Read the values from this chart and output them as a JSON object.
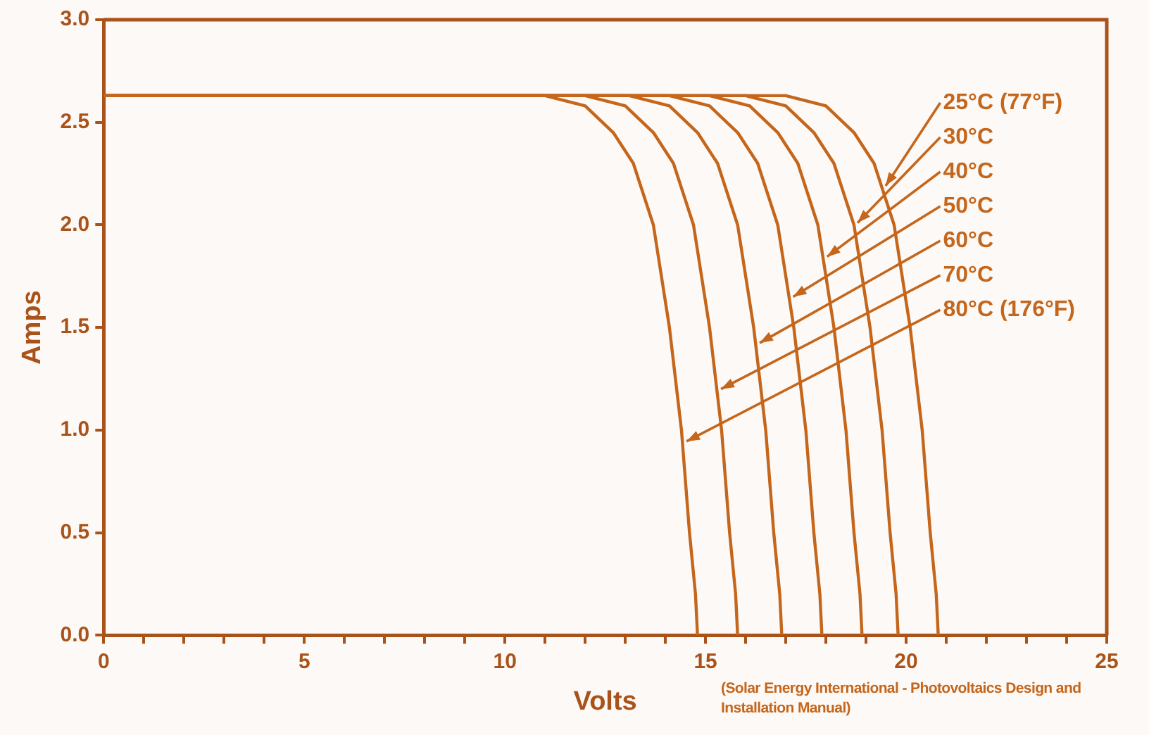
{
  "chart_data": {
    "type": "line",
    "xlabel": "Volts",
    "ylabel": "Amps",
    "xlim": [
      0,
      25
    ],
    "ylim": [
      0,
      3.0
    ],
    "xticks": [
      0,
      {
        "value": 1,
        "label": null
      },
      {
        "value": 2,
        "label": null
      },
      {
        "value": 3,
        "label": null
      },
      {
        "value": 4,
        "label": null
      },
      5,
      {
        "value": 6,
        "label": null
      },
      {
        "value": 7,
        "label": null
      },
      {
        "value": 8,
        "label": null
      },
      {
        "value": 9,
        "label": null
      },
      10,
      {
        "value": 11,
        "label": null
      },
      {
        "value": 12,
        "label": null
      },
      {
        "value": 13,
        "label": null
      },
      {
        "value": 14,
        "label": null
      },
      15,
      {
        "value": 16,
        "label": null
      },
      {
        "value": 17,
        "label": null
      },
      {
        "value": 18,
        "label": null
      },
      {
        "value": 19,
        "label": null
      },
      20,
      {
        "value": 21,
        "label": null
      },
      {
        "value": 22,
        "label": null
      },
      {
        "value": 23,
        "label": null
      },
      {
        "value": 24,
        "label": null
      },
      25
    ],
    "yticks": [
      {
        "value": 0,
        "label": "0.0"
      },
      0.5,
      {
        "value": 1,
        "label": "1.0"
      },
      1.5,
      {
        "value": 2,
        "label": "2.0"
      },
      2.5,
      {
        "value": 3,
        "label": "3.0"
      }
    ],
    "grid": false,
    "legend": "top right",
    "marker": "none",
    "line_style": "solid",
    "series": [
      {
        "name": "25°C (77°F)",
        "color": "#c4661c",
        "x": [
          0,
          17,
          18,
          18.7,
          19.2,
          19.7,
          20.1,
          20.4,
          20.6,
          20.75,
          20.8
        ],
        "values": [
          2.63,
          2.63,
          2.58,
          2.45,
          2.3,
          2.0,
          1.5,
          1.0,
          0.5,
          0.2,
          0
        ]
      },
      {
        "name": "30°C",
        "color": "#c4661c",
        "x": [
          0,
          16,
          17,
          17.7,
          18.2,
          18.7,
          19.1,
          19.4,
          19.6,
          19.75,
          19.8
        ],
        "values": [
          2.63,
          2.63,
          2.58,
          2.45,
          2.3,
          2.0,
          1.5,
          1.0,
          0.5,
          0.2,
          0
        ]
      },
      {
        "name": "40°C",
        "color": "#c4661c",
        "x": [
          0,
          15.1,
          16.1,
          16.8,
          17.3,
          17.8,
          18.2,
          18.5,
          18.7,
          18.85,
          18.9
        ],
        "values": [
          2.63,
          2.63,
          2.58,
          2.45,
          2.3,
          2.0,
          1.5,
          1.0,
          0.5,
          0.2,
          0
        ]
      },
      {
        "name": "50°C",
        "color": "#c4661c",
        "x": [
          0,
          14.1,
          15.1,
          15.8,
          16.3,
          16.8,
          17.2,
          17.5,
          17.7,
          17.85,
          17.9
        ],
        "values": [
          2.63,
          2.63,
          2.58,
          2.45,
          2.3,
          2.0,
          1.5,
          1.0,
          0.5,
          0.2,
          0
        ]
      },
      {
        "name": "60°C",
        "color": "#c4661c",
        "x": [
          0,
          13.1,
          14.1,
          14.8,
          15.3,
          15.8,
          16.2,
          16.5,
          16.7,
          16.85,
          16.9
        ],
        "values": [
          2.63,
          2.63,
          2.58,
          2.45,
          2.3,
          2.0,
          1.5,
          1.0,
          0.5,
          0.2,
          0
        ]
      },
      {
        "name": "70°C",
        "color": "#c4661c",
        "x": [
          0,
          12,
          13,
          13.7,
          14.2,
          14.7,
          15.1,
          15.4,
          15.6,
          15.75,
          15.8
        ],
        "values": [
          2.63,
          2.63,
          2.58,
          2.45,
          2.3,
          2.0,
          1.5,
          1.0,
          0.5,
          0.2,
          0
        ]
      },
      {
        "name": "80°C (176°F)",
        "color": "#c4661c",
        "x": [
          0,
          11,
          12,
          12.7,
          13.2,
          13.7,
          14.1,
          14.4,
          14.6,
          14.75,
          14.8
        ],
        "values": [
          2.63,
          2.63,
          2.58,
          2.45,
          2.3,
          2.0,
          1.5,
          1.0,
          0.5,
          0.2,
          0
        ]
      }
    ],
    "annotations": [
      "(Solar Energy International - Photovoltaics Design and Installation Manual)"
    ]
  }
}
